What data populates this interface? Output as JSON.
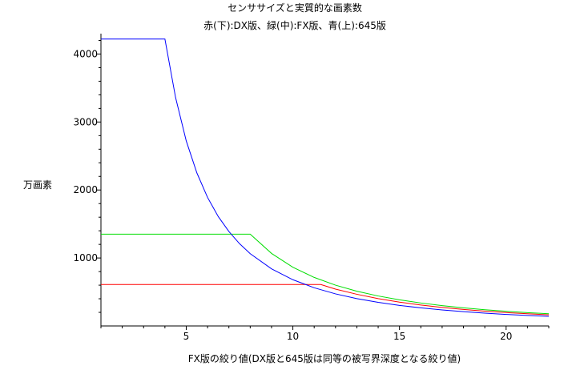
{
  "chart_data": {
    "type": "line",
    "title": "センササイズと実質的な画素数",
    "subtitle": "赤(下):DX版、緑(中):FX版、青(上):645版",
    "xlabel": "FX版の絞り値(DX版と645版は同等の被写界深度となる絞り値)",
    "ylabel": "万画素",
    "xlim": [
      1,
      22
    ],
    "ylim": [
      0,
      4300
    ],
    "x_ticks": [
      5,
      10,
      15,
      20
    ],
    "y_ticks": [
      1000,
      2000,
      3000,
      4000
    ],
    "grid": false,
    "series": [
      {
        "color": "#ff0000",
        "values": [
          [
            1,
            610
          ],
          [
            11.31,
            610
          ],
          [
            12,
            542
          ],
          [
            13,
            466
          ],
          [
            14,
            402
          ],
          [
            15,
            350
          ],
          [
            16,
            308
          ],
          [
            17,
            273
          ],
          [
            18,
            243
          ],
          [
            19,
            218
          ],
          [
            20,
            197
          ],
          [
            21,
            179
          ],
          [
            22,
            163
          ]
        ]
      },
      {
        "color": "#00dd00",
        "values": [
          [
            1,
            1350
          ],
          [
            8,
            1350
          ],
          [
            9,
            1067
          ],
          [
            10,
            864
          ],
          [
            11,
            714
          ],
          [
            12,
            600
          ],
          [
            13,
            511
          ],
          [
            14,
            441
          ],
          [
            15,
            384
          ],
          [
            16,
            338
          ],
          [
            17,
            299
          ],
          [
            18,
            267
          ],
          [
            19,
            239
          ],
          [
            20,
            216
          ],
          [
            21,
            196
          ],
          [
            22,
            179
          ]
        ]
      },
      {
        "color": "#0000ff",
        "values": [
          [
            1,
            4220
          ],
          [
            4,
            4220
          ],
          [
            4.5,
            3360
          ],
          [
            5,
            2722
          ],
          [
            5.5,
            2250
          ],
          [
            6,
            1890
          ],
          [
            6.5,
            1610
          ],
          [
            7,
            1389
          ],
          [
            7.5,
            1210
          ],
          [
            8,
            1063
          ],
          [
            9,
            840
          ],
          [
            10,
            680
          ],
          [
            11,
            562
          ],
          [
            12,
            472
          ],
          [
            13,
            402
          ],
          [
            14,
            347
          ],
          [
            15,
            302
          ],
          [
            16,
            266
          ],
          [
            17,
            235
          ],
          [
            18,
            210
          ],
          [
            19,
            188
          ],
          [
            20,
            170
          ],
          [
            21,
            154
          ],
          [
            22,
            141
          ]
        ]
      }
    ]
  }
}
